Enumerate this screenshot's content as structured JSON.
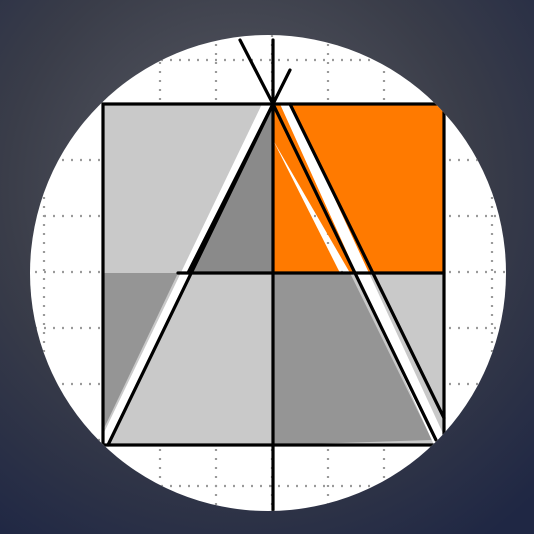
{
  "logo": {
    "icon": "geometric-letter-a-logo-icon",
    "colors": {
      "background_gradient": [
        "#1f2744",
        "#3a3d49",
        "#5b5d66",
        "#2c3150"
      ],
      "circle": "#ffffff",
      "grid_dots": "#9a9a9a",
      "light_gray": "#c9c9c9",
      "mid_gray": "#959595",
      "dark_gray": "#8a8a8a",
      "accent_orange": "#ff7a00",
      "line": "#000000"
    }
  }
}
